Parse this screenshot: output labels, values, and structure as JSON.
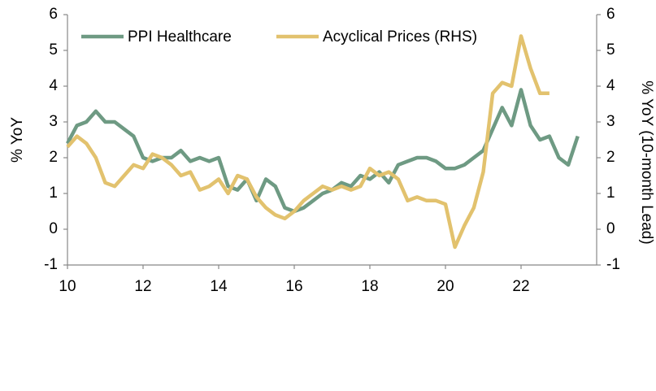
{
  "chart_data": {
    "type": "line",
    "y_label": "% YoY",
    "y2_label": "% YoY (10-month Lead)",
    "x": [
      10.0,
      10.25,
      10.5,
      10.75,
      11.0,
      11.25,
      11.5,
      11.75,
      12.0,
      12.25,
      12.5,
      12.75,
      13.0,
      13.25,
      13.5,
      13.75,
      14.0,
      14.25,
      14.5,
      14.75,
      15.0,
      15.25,
      15.5,
      15.75,
      16.0,
      16.25,
      16.5,
      16.75,
      17.0,
      17.25,
      17.5,
      17.75,
      18.0,
      18.25,
      18.5,
      18.75,
      19.0,
      19.25,
      19.5,
      19.75,
      20.0,
      20.25,
      20.5,
      20.75,
      21.0,
      21.25,
      21.5,
      21.75,
      22.0,
      22.25,
      22.5,
      22.75,
      23.0,
      23.25,
      23.5
    ],
    "series": [
      {
        "name": "PPI Healthcare",
        "color": "#6e9a83",
        "axis": "y",
        "values": [
          2.4,
          2.9,
          3.0,
          3.3,
          3.0,
          3.0,
          2.8,
          2.6,
          2.0,
          1.9,
          2.0,
          2.0,
          2.2,
          1.9,
          2.0,
          1.9,
          2.0,
          1.2,
          1.1,
          1.4,
          0.8,
          1.4,
          1.2,
          0.6,
          0.5,
          0.6,
          0.8,
          1.0,
          1.1,
          1.3,
          1.2,
          1.5,
          1.4,
          1.6,
          1.3,
          1.8,
          1.9,
          2.0,
          2.0,
          1.9,
          1.7,
          1.7,
          1.8,
          2.0,
          2.2,
          2.8,
          3.4,
          2.9,
          3.9,
          2.9,
          2.5,
          2.6,
          2.0,
          1.8,
          2.6
        ]
      },
      {
        "name": "Acyclical Prices (RHS)",
        "color": "#e2c26e",
        "axis": "y2",
        "values": [
          2.3,
          2.6,
          2.4,
          2.0,
          1.3,
          1.2,
          1.5,
          1.8,
          1.7,
          2.1,
          2.0,
          1.8,
          1.5,
          1.6,
          1.1,
          1.2,
          1.4,
          1.0,
          1.5,
          1.4,
          0.9,
          0.6,
          0.4,
          0.3,
          0.5,
          0.8,
          1.0,
          1.2,
          1.1,
          1.2,
          1.1,
          1.2,
          1.7,
          1.5,
          1.6,
          1.4,
          0.8,
          0.9,
          0.8,
          0.8,
          0.7,
          -0.5,
          0.1,
          0.6,
          1.6,
          3.8,
          4.1,
          4.0,
          5.4,
          4.5,
          3.8,
          3.8,
          null,
          null,
          null
        ]
      }
    ],
    "xlim": [
      10,
      24
    ],
    "xticks": [
      10,
      12,
      14,
      16,
      18,
      20,
      22
    ],
    "ylim": [
      -1,
      6
    ],
    "yticks": [
      -1,
      0,
      1,
      2,
      3,
      4,
      5,
      6
    ],
    "y2lim": [
      -1,
      6
    ],
    "y2ticks": [
      -1,
      0,
      1,
      2,
      3,
      4,
      5,
      6
    ],
    "grid": false,
    "legend": "top-left"
  }
}
